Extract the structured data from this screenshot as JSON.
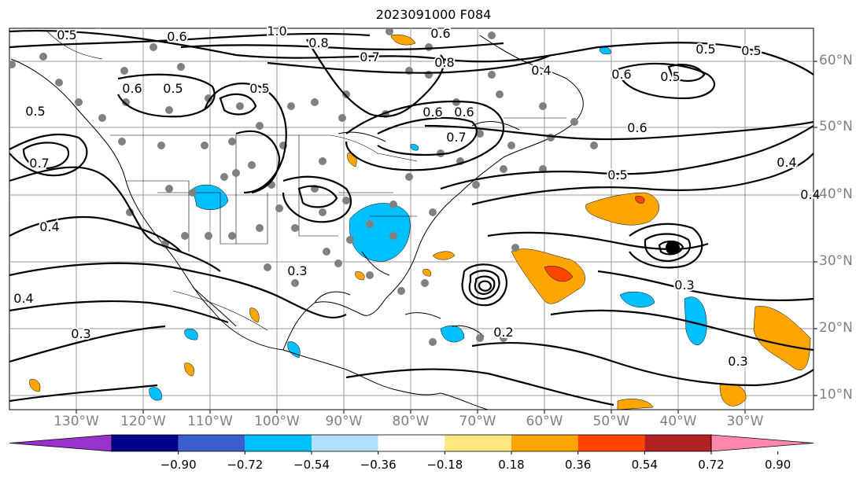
{
  "title": "2023091000 F084",
  "lon_labels": [
    "130°W",
    "120°W",
    "110°W",
    "100°W",
    "90°W",
    "80°W",
    "70°W",
    "60°W",
    "50°W",
    "40°W",
    "30°W"
  ],
  "lat_labels": [
    "60°N",
    "50°N",
    "40°N",
    "30°N",
    "20°N",
    "10°N"
  ],
  "colorbar": {
    "ticks": [
      "−0.90",
      "−0.72",
      "−0.54",
      "−0.36",
      "−0.18",
      "0.18",
      "0.36",
      "0.54",
      "0.72",
      "0.90"
    ],
    "colors": [
      "#9932cc",
      "#00008b",
      "#3a5fcd",
      "#00bfff",
      "#b0e2ff",
      "#ffffff",
      "#ffe680",
      "#ffa500",
      "#ff4500",
      "#b22222",
      "#ff88aa"
    ]
  },
  "contour_labels": [
    "0.5",
    "0.6",
    "1.0",
    "0.6",
    "0.8",
    "0.7",
    "0.8",
    "0.5",
    "0.5",
    "0.6",
    "0.5",
    "0.4",
    "0.5",
    "0.6",
    "0.5",
    "0.7",
    "0.6",
    "0.6",
    "0.7",
    "0.5",
    "0.4",
    "0.4",
    "0.3",
    "0.3",
    "0.4",
    "0.3",
    "0.2",
    "0.3",
    "0.4",
    "0.5",
    "0.6"
  ]
}
